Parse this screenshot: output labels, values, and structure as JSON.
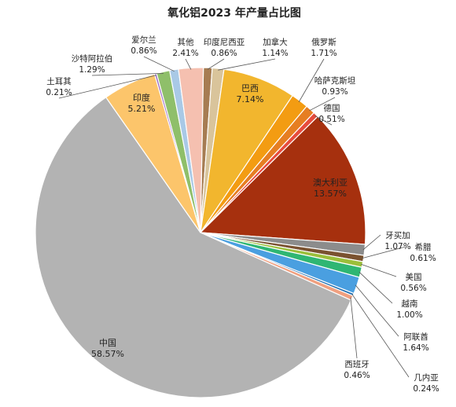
{
  "chart_data": {
    "type": "pie",
    "title": "氧化铝2023 年产量占比图",
    "slices": [
      {
        "name": "印度尼西亚",
        "value": 0.86,
        "label": "0.86%",
        "color": "#a67c52"
      },
      {
        "name": "加拿大",
        "value": 1.14,
        "label": "1.14%",
        "color": "#d9c49b"
      },
      {
        "name": "巴西",
        "value": 7.14,
        "label": "7.14%",
        "color": "#f2b62e"
      },
      {
        "name": "俄罗斯",
        "value": 1.71,
        "label": "1.71%",
        "color": "#f39c12"
      },
      {
        "name": "哈萨克斯坦",
        "value": 0.93,
        "label": "0.93%",
        "color": "#e67e22"
      },
      {
        "name": "德国",
        "value": 0.51,
        "label": "0.51%",
        "color": "#e74c3c"
      },
      {
        "name": "澳大利亚",
        "value": 13.57,
        "label": "13.57%",
        "color": "#a6300e"
      },
      {
        "name": "牙买加",
        "value": 1.07,
        "label": "1.07%",
        "color": "#8c8c8c"
      },
      {
        "name": "希腊",
        "value": 0.61,
        "label": "0.61%",
        "color": "#7a5230"
      },
      {
        "name": "美国",
        "value": 0.56,
        "label": "0.56%",
        "color": "#9bbf3b"
      },
      {
        "name": "越南",
        "value": 1.0,
        "label": "1.00%",
        "color": "#2fb673"
      },
      {
        "name": "阿联酋",
        "value": 1.64,
        "label": "1.64%",
        "color": "#4a9fe0"
      },
      {
        "name": "几内亚",
        "value": 0.24,
        "label": "0.24%",
        "color": "#1f6fb2"
      },
      {
        "name": "西班牙",
        "value": 0.46,
        "label": "0.46%",
        "color": "#f0a080"
      },
      {
        "name": "中国",
        "value": 58.57,
        "label": "58.57%",
        "color": "#b3b3b3"
      },
      {
        "name": "印度",
        "value": 5.21,
        "label": "5.21%",
        "color": "#fcc56b"
      },
      {
        "name": "土耳其",
        "value": 0.21,
        "label": "0.21%",
        "color": "#9b6ac4"
      },
      {
        "name": "沙特阿拉伯",
        "value": 1.29,
        "label": "1.29%",
        "color": "#8fbf6a"
      },
      {
        "name": "爱尔兰",
        "value": 0.86,
        "label": "0.86%",
        "color": "#a9c9e6"
      },
      {
        "name": "其他",
        "value": 2.41,
        "label": "2.41%",
        "color": "#f5c0b0"
      }
    ]
  }
}
